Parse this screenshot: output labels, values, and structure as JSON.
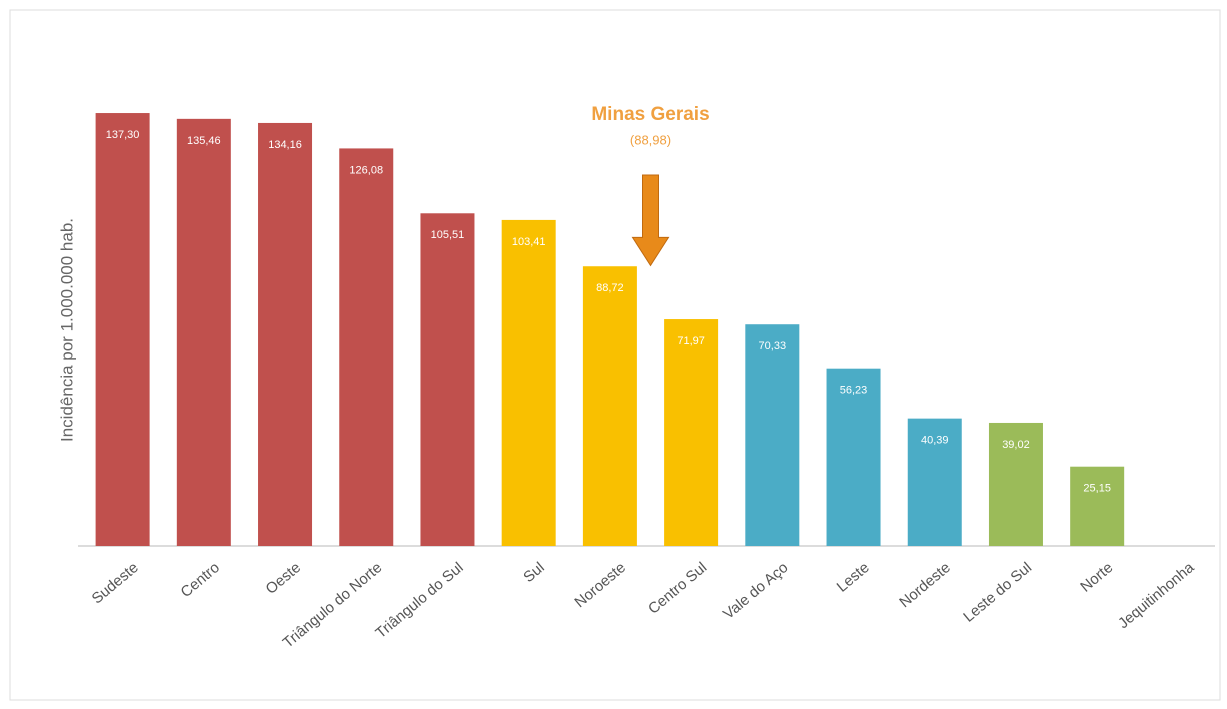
{
  "chart_data": {
    "type": "bar",
    "y_label": "Incidência por 1.000.000 hab.",
    "categories": [
      "Sudeste",
      "Centro",
      "Oeste",
      "Triângulo do Norte",
      "Triângulo do Sul",
      "Sul",
      "Noroeste",
      "Centro Sul",
      "Vale do Aço",
      "Leste",
      "Nordeste",
      "Leste do Sul",
      "Norte",
      "Jequitinhonha"
    ],
    "values": [
      137.3,
      135.46,
      134.16,
      126.08,
      105.51,
      103.41,
      88.72,
      71.97,
      70.33,
      56.23,
      40.39,
      39.02,
      25.15,
      null
    ],
    "value_labels": [
      "137,30",
      "135,46",
      "134,16",
      "126,08",
      "105,51",
      "103,41",
      "88,72",
      "71,97",
      "70,33",
      "56,23",
      "40,39",
      "39,02",
      "25,15",
      null
    ],
    "colors": [
      "#c0504d",
      "#c0504d",
      "#c0504d",
      "#c0504d",
      "#c0504d",
      "#f9c000",
      "#f9c000",
      "#f9c000",
      "#4bacc6",
      "#4bacc6",
      "#4bacc6",
      "#9bbb59",
      "#9bbb59",
      "#9bbb59"
    ],
    "ylim": [
      0,
      150
    ],
    "annotation": {
      "text": "Minas Gerais",
      "value": 88.98,
      "value_label": "(88,98)",
      "color": "#f0a040"
    }
  }
}
